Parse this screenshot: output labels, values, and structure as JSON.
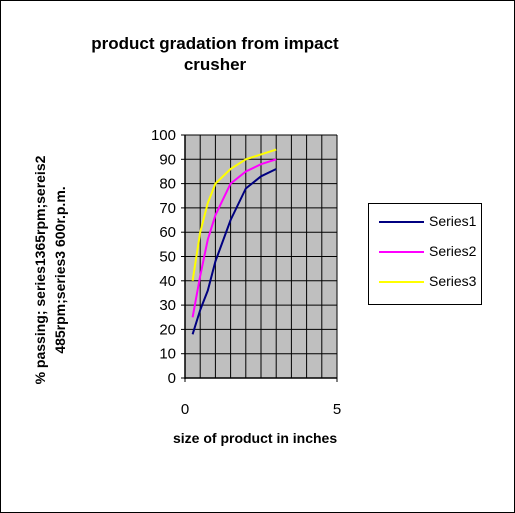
{
  "chart_data": {
    "type": "line",
    "title": "product gradation from impact crusher",
    "title_lines": [
      "product gradation from impact",
      "crusher"
    ],
    "xlabel": "size of product in inches",
    "ylabel_lines": [
      "% passing;  series1365rpm;sereis2",
      "485rpm;series3 600r.p.m."
    ],
    "xlim": [
      0,
      5
    ],
    "ylim": [
      0,
      100
    ],
    "x_ticks": [
      "0",
      "5"
    ],
    "y_ticks": [
      "0",
      "10",
      "20",
      "30",
      "40",
      "50",
      "60",
      "70",
      "80",
      "90",
      "100"
    ],
    "grid": true,
    "plot_background": "#bfbfbf",
    "legend_position": "right",
    "series": [
      {
        "name": "Series1",
        "color": "#000080",
        "points": [
          [
            0.25,
            18
          ],
          [
            0.5,
            28
          ],
          [
            0.75,
            36
          ],
          [
            1.0,
            48
          ],
          [
            1.5,
            65
          ],
          [
            2.0,
            78
          ],
          [
            2.5,
            83
          ],
          [
            3.0,
            86
          ]
        ]
      },
      {
        "name": "Series2",
        "color": "#ff00ff",
        "points": [
          [
            0.25,
            25
          ],
          [
            0.5,
            42
          ],
          [
            0.75,
            57
          ],
          [
            1.0,
            67
          ],
          [
            1.5,
            80
          ],
          [
            2.0,
            85
          ],
          [
            2.5,
            88
          ],
          [
            3.0,
            90
          ]
        ]
      },
      {
        "name": "Series3",
        "color": "#ffff00",
        "points": [
          [
            0.25,
            40
          ],
          [
            0.5,
            60
          ],
          [
            0.75,
            72
          ],
          [
            1.0,
            80
          ],
          [
            1.5,
            86
          ],
          [
            2.0,
            90
          ],
          [
            2.5,
            92
          ],
          [
            3.0,
            94
          ]
        ]
      }
    ]
  }
}
